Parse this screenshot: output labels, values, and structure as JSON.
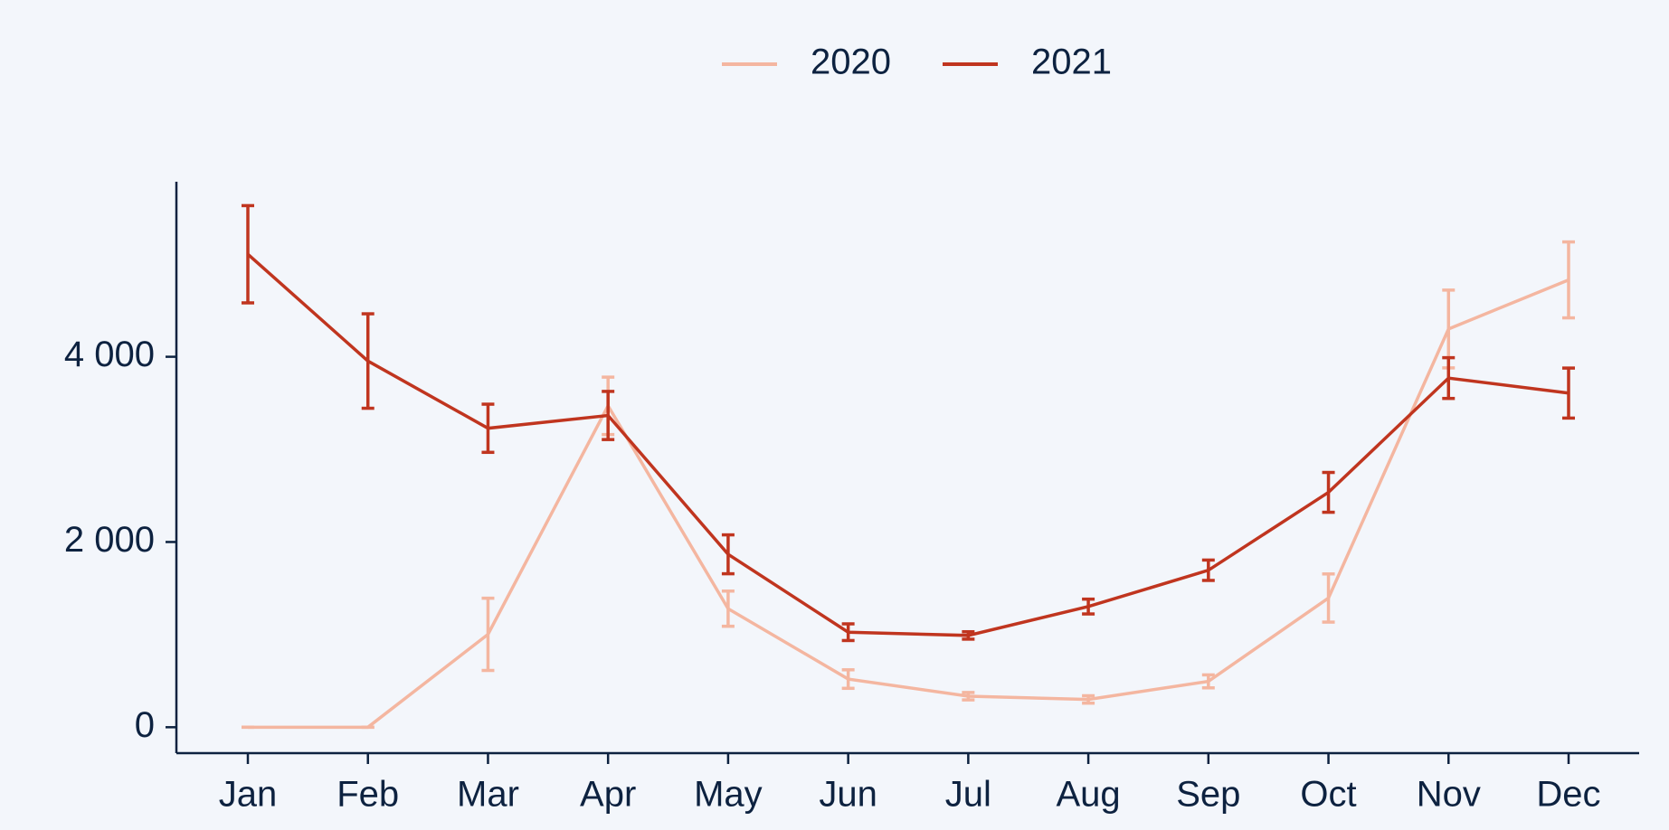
{
  "chart_data": {
    "type": "line",
    "categories": [
      "Jan",
      "Feb",
      "Mar",
      "Apr",
      "May",
      "Jun",
      "Jul",
      "Aug",
      "Sep",
      "Oct",
      "Nov",
      "Dec"
    ],
    "series": [
      {
        "name": "2020",
        "color": "#f4b6a0",
        "values": [
          0,
          0,
          1003,
          3470,
          1280,
          520,
          335,
          300,
          495,
          1395,
          4300,
          4830
        ],
        "errors": [
          0,
          0,
          390,
          310,
          190,
          100,
          40,
          40,
          70,
          260,
          420,
          410
        ]
      },
      {
        "name": "2021",
        "color": "#c0351f",
        "values": [
          5107,
          3954,
          3228,
          3366,
          1867,
          1026,
          991,
          1303,
          1695,
          2536,
          3770,
          3608
        ],
        "errors": [
          525,
          510,
          260,
          260,
          210,
          90,
          40,
          80,
          110,
          215,
          220,
          270
        ]
      }
    ],
    "ylim": [
      -280,
      5890
    ],
    "yticks": [
      0,
      {
        "value": 2000,
        "label": "2 000"
      },
      {
        "value": 4000,
        "label": "4 000"
      }
    ],
    "legend": "top"
  }
}
